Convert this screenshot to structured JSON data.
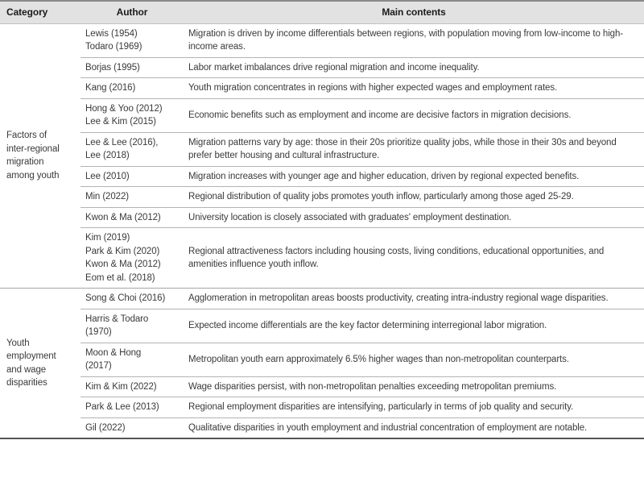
{
  "table": {
    "headers": [
      {
        "label": "Category"
      },
      {
        "label": "Author"
      },
      {
        "label": "Main contents"
      }
    ],
    "sections": [
      {
        "category": "Factors of\ninter-regional\nmigration\namong youth",
        "rows": [
          {
            "authors": "Lewis (1954)\nTodaro (1969)",
            "content": "Migration is driven by income differentials between regions, with population moving from low-income to high-income areas."
          },
          {
            "authors": "Borjas (1995)",
            "content": "Labor market imbalances drive regional migration and income inequality."
          },
          {
            "authors": "Kang (2016)",
            "content": "Youth migration concentrates in regions with higher expected wages and employment rates."
          },
          {
            "authors": "Hong & Yoo (2012)\nLee & Kim (2015)",
            "content": "Economic benefits such as employment and income are decisive factors in migration decisions."
          },
          {
            "authors": "Lee & Lee (2016),\nLee (2018)",
            "content": "Migration patterns vary by age: those in their 20s prioritize quality jobs, while those in their 30s and beyond prefer better housing and cultural infrastructure."
          },
          {
            "authors": "Lee (2010)",
            "content": "Migration increases with younger age and higher education, driven by regional expected benefits."
          },
          {
            "authors": "Min (2022)",
            "content": "Regional distribution of quality jobs promotes youth inflow, particularly among those aged 25-29."
          },
          {
            "authors": "Kwon & Ma (2012)",
            "content": "University location is closely associated with graduates' employment destination."
          },
          {
            "authors": "Kim (2019)\nPark & Kim (2020)\nKwon & Ma (2012)\nEom et al. (2018)",
            "content": "Regional attractiveness factors including housing costs, living conditions, educational opportunities, and amenities influence youth inflow."
          }
        ]
      },
      {
        "category": "Youth\nemployment\nand wage\ndisparities",
        "rows": [
          {
            "authors": "Song & Choi (2016)",
            "content": "Agglomeration in metropolitan areas boosts productivity, creating intra-industry regional wage disparities."
          },
          {
            "authors": "Harris & Todaro\n(1970)",
            "content": "Expected income differentials are the key factor determining interregional labor migration."
          },
          {
            "authors": "Moon & Hong\n(2017)",
            "content": "Metropolitan youth earn approximately 6.5% higher wages than non-metropolitan counterparts."
          },
          {
            "authors": "Kim & Kim (2022)",
            "content": "Wage disparities persist, with non-metropolitan penalties exceeding metropolitan premiums."
          },
          {
            "authors": "Park & Lee (2013)",
            "content": "Regional employment disparities are intensifying, particularly in terms of job quality and security."
          },
          {
            "authors": "Gil (2022)",
            "content": "Qualitative disparities in youth employment and industrial concentration of employment are notable."
          }
        ]
      }
    ],
    "colors": {
      "header_bg": "#e2e2e2",
      "top_border": "#8a8a8a",
      "bottom_border": "#545454",
      "section_divider": "#a5a5a5",
      "row_separator": "#b3b3b3",
      "text": "#3a3a3a",
      "header_text": "#1b1b1b"
    }
  }
}
